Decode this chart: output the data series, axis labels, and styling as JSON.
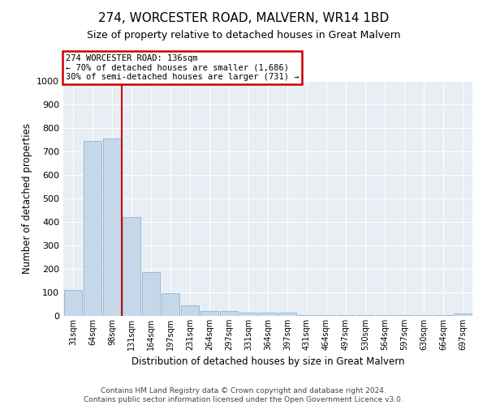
{
  "title": "274, WORCESTER ROAD, MALVERN, WR14 1BD",
  "subtitle": "Size of property relative to detached houses in Great Malvern",
  "xlabel": "Distribution of detached houses by size in Great Malvern",
  "ylabel": "Number of detached properties",
  "categories": [
    "31sqm",
    "64sqm",
    "98sqm",
    "131sqm",
    "164sqm",
    "197sqm",
    "231sqm",
    "264sqm",
    "297sqm",
    "331sqm",
    "364sqm",
    "397sqm",
    "431sqm",
    "464sqm",
    "497sqm",
    "530sqm",
    "564sqm",
    "597sqm",
    "630sqm",
    "664sqm",
    "697sqm"
  ],
  "values": [
    110,
    745,
    755,
    420,
    185,
    95,
    45,
    20,
    20,
    15,
    15,
    15,
    5,
    5,
    5,
    5,
    5,
    5,
    5,
    5,
    10
  ],
  "bar_color": "#c5d8ea",
  "bar_edge_color": "#8ab4d0",
  "vline_x": 2.5,
  "vline_color": "#cc0000",
  "annotation_line1": "274 WORCESTER ROAD: 136sqm",
  "annotation_line2": "← 70% of detached houses are smaller (1,686)",
  "annotation_line3": "30% of semi-detached houses are larger (731) →",
  "annotation_box_color": "#cc0000",
  "ylim": [
    0,
    1000
  ],
  "yticks": [
    0,
    100,
    200,
    300,
    400,
    500,
    600,
    700,
    800,
    900,
    1000
  ],
  "background_color": "#e8eef4",
  "footer": "Contains HM Land Registry data © Crown copyright and database right 2024.\nContains public sector information licensed under the Open Government Licence v3.0.",
  "title_fontsize": 11,
  "subtitle_fontsize": 9,
  "xlabel_fontsize": 8.5,
  "ylabel_fontsize": 8.5,
  "footer_fontsize": 6.5,
  "tick_fontsize": 8,
  "xtick_fontsize": 7
}
